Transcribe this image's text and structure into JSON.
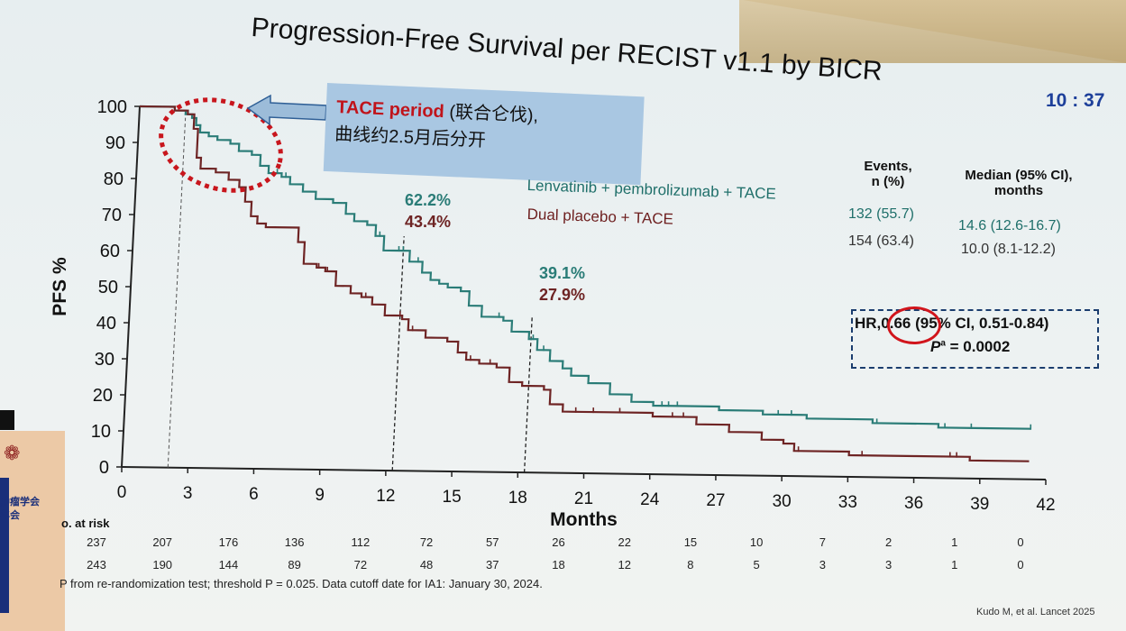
{
  "slide": {
    "title": "Progression-Free Survival per RECIST v1.1 by BICR",
    "clock": "10 : 37",
    "footnote": "P from re-randomization test; threshold P = 0.025. Data cutoff date for IA1: January 30, 2024.",
    "citation": "Kudo M, et al. Lancet 2025",
    "side_text_1": "肿瘤学会",
    "side_text_2": "年会"
  },
  "annotation": {
    "tace_bold": "TACE period",
    "tace_rest": " (联合仑伐),",
    "tace_line2": "曲线约2.5月后分开"
  },
  "stats_table": {
    "col_events": [
      "Events,",
      "n (%)"
    ],
    "col_median": [
      "Median (95% CI),",
      "months"
    ],
    "rows": [
      {
        "arm": "Lenvatinib + pembrolizumab + TACE",
        "events": "132 (55.7)",
        "median": "14.6 (12.6-16.7)"
      },
      {
        "arm": "Dual placebo + TACE",
        "events": "154 (63.4)",
        "median": "10.0 (8.1-12.2)"
      }
    ]
  },
  "hazard": {
    "hr_prefix": "HR,",
    "hr_value": "0.66",
    "hr_ci": "(95% CI, 0.51-0.84)",
    "p_label": "P",
    "p_sup": "a",
    "p_value": " = 0.0002"
  },
  "landmarks": [
    {
      "month": 12,
      "upper": "62.2%",
      "lower": "43.4%"
    },
    {
      "month": 18,
      "upper": "39.1%",
      "lower": "27.9%"
    }
  ],
  "risk_table": {
    "label": "o. at risk",
    "months": [
      0,
      3,
      6,
      9,
      12,
      15,
      18,
      21,
      24,
      27,
      30,
      33,
      36,
      39,
      42
    ],
    "rows": [
      [
        "237",
        "207",
        "176",
        "136",
        "112",
        "72",
        "57",
        "26",
        "22",
        "15",
        "10",
        "7",
        "2",
        "1",
        "0"
      ],
      [
        "243",
        "190",
        "144",
        "89",
        "72",
        "48",
        "37",
        "18",
        "12",
        "8",
        "5",
        "3",
        "3",
        "1",
        "0"
      ]
    ]
  },
  "chart_data": {
    "type": "line",
    "title": "Progression-Free Survival per RECIST v1.1 by BICR",
    "xlabel": "Months",
    "ylabel": "PFS %",
    "xlim": [
      0,
      42
    ],
    "ylim": [
      0,
      100
    ],
    "xticks": [
      0,
      3,
      6,
      9,
      12,
      15,
      18,
      21,
      24,
      27,
      30,
      33,
      36,
      39,
      42
    ],
    "yticks": [
      0,
      10,
      20,
      30,
      40,
      50,
      60,
      70,
      80,
      90,
      100
    ],
    "colors": {
      "lenva": "#2a7c77",
      "placebo": "#6e2424"
    },
    "series": [
      {
        "name": "Lenvatinib + pembrolizumab + TACE",
        "points": [
          [
            0,
            100
          ],
          [
            1,
            100
          ],
          [
            1.6,
            99
          ],
          [
            2.1,
            98
          ],
          [
            2.4,
            97
          ],
          [
            2.6,
            95
          ],
          [
            2.8,
            93
          ],
          [
            3.2,
            92
          ],
          [
            3.6,
            91
          ],
          [
            4.2,
            90
          ],
          [
            4.6,
            88
          ],
          [
            5.2,
            87
          ],
          [
            5.6,
            84
          ],
          [
            6,
            82
          ],
          [
            6.6,
            81
          ],
          [
            7,
            79
          ],
          [
            7.6,
            77
          ],
          [
            8.2,
            75
          ],
          [
            9,
            74
          ],
          [
            9.6,
            71
          ],
          [
            10,
            69
          ],
          [
            10.6,
            68
          ],
          [
            11,
            65
          ],
          [
            11.4,
            61
          ],
          [
            12.3,
            61
          ],
          [
            12.6,
            58
          ],
          [
            13.2,
            55
          ],
          [
            13.6,
            53
          ],
          [
            14,
            52
          ],
          [
            14.4,
            51
          ],
          [
            15,
            50
          ],
          [
            15.4,
            46
          ],
          [
            16,
            43
          ],
          [
            17,
            42
          ],
          [
            17.4,
            39
          ],
          [
            18.2,
            37
          ],
          [
            18.6,
            34
          ],
          [
            19.2,
            31
          ],
          [
            19.8,
            29
          ],
          [
            20.2,
            27
          ],
          [
            21,
            25
          ],
          [
            22,
            22
          ],
          [
            23,
            20
          ],
          [
            24,
            19
          ],
          [
            27,
            18
          ],
          [
            29,
            17
          ],
          [
            31,
            16
          ],
          [
            34,
            15
          ],
          [
            37,
            14
          ],
          [
            39,
            14
          ],
          [
            41.2,
            14
          ]
        ],
        "censor": [
          4.6,
          5.2,
          6.4,
          6.8,
          11,
          11.2,
          12.1,
          12.3,
          13,
          16.8,
          18.4,
          18.9,
          24.4,
          24.7,
          25.1,
          29.7,
          30.3,
          34.2,
          37.3,
          38.5,
          41.2
        ]
      },
      {
        "name": "Dual placebo + TACE",
        "points": [
          [
            0,
            100
          ],
          [
            1,
            100
          ],
          [
            1.6,
            99
          ],
          [
            2.2,
            98
          ],
          [
            2.5,
            94
          ],
          [
            2.7,
            86
          ],
          [
            2.9,
            83
          ],
          [
            3.6,
            82
          ],
          [
            4.2,
            80
          ],
          [
            4.7,
            78
          ],
          [
            5,
            74
          ],
          [
            5.3,
            70
          ],
          [
            5.6,
            68
          ],
          [
            6,
            67
          ],
          [
            7.2,
            67
          ],
          [
            7.5,
            63
          ],
          [
            7.8,
            57
          ],
          [
            8.4,
            56
          ],
          [
            8.8,
            55
          ],
          [
            9.3,
            51
          ],
          [
            10,
            49
          ],
          [
            10.5,
            48
          ],
          [
            11,
            46
          ],
          [
            11.6,
            43
          ],
          [
            12.4,
            42
          ],
          [
            12.7,
            39
          ],
          [
            13.5,
            37
          ],
          [
            14,
            37
          ],
          [
            14.5,
            36
          ],
          [
            15,
            33
          ],
          [
            15.4,
            31
          ],
          [
            16,
            30
          ],
          [
            16.8,
            29
          ],
          [
            17.4,
            25
          ],
          [
            18,
            24
          ],
          [
            19,
            23
          ],
          [
            19.3,
            19
          ],
          [
            19.9,
            17
          ],
          [
            20.4,
            17
          ],
          [
            22,
            17
          ],
          [
            24,
            16
          ],
          [
            26,
            14
          ],
          [
            27.5,
            12
          ],
          [
            28,
            12
          ],
          [
            29,
            10
          ],
          [
            30,
            9
          ],
          [
            30.5,
            7
          ],
          [
            33,
            6
          ],
          [
            36,
            6
          ],
          [
            38.5,
            5
          ],
          [
            41.2,
            5
          ]
        ],
        "censor": [
          8.5,
          8.9,
          10.7,
          12.3,
          12.9,
          15.6,
          16.5,
          20.5,
          21.3,
          22.5,
          24.9,
          25.4,
          30.7,
          33.6,
          37.6,
          37.9
        ]
      }
    ]
  }
}
